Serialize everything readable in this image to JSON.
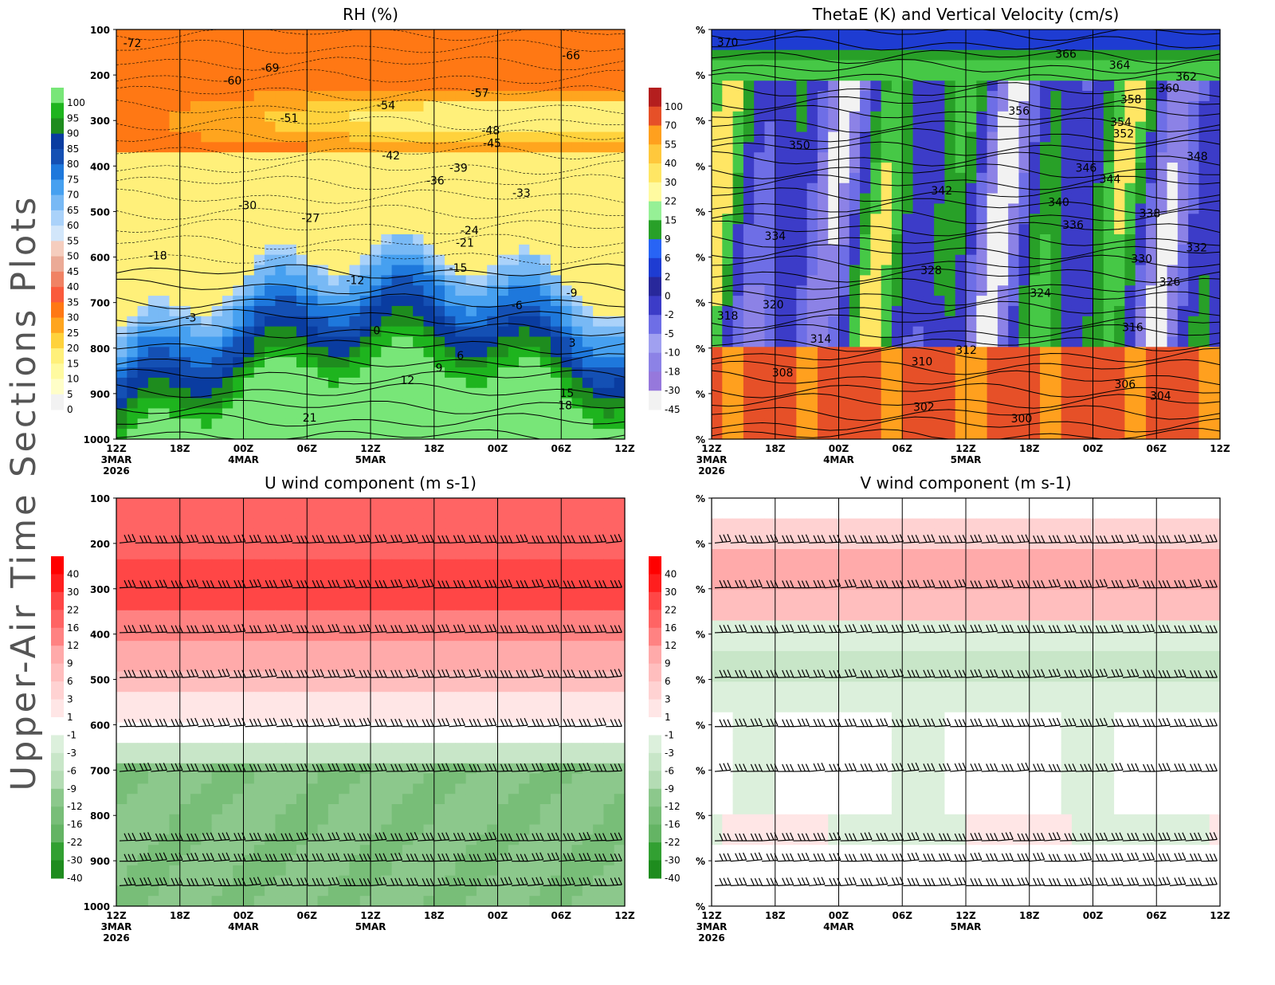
{
  "page_title": "Upper-Air Time Sections Plots",
  "chart_data": [
    {
      "type": "heatmap",
      "title": "RH (%)",
      "xlabel": "",
      "ylabel": "",
      "y_ticks": [
        "100",
        "200",
        "300",
        "400",
        "500",
        "600",
        "700",
        "800",
        "900",
        "1000"
      ],
      "x_ticks": [
        "12Z",
        "18Z",
        "00Z",
        "06Z",
        "12Z",
        "18Z",
        "00Z",
        "06Z",
        "12Z"
      ],
      "x_dates": [
        "3MAR",
        "4MAR",
        "5MAR"
      ],
      "x_year": "2026",
      "colorbar_levels": [
        "100",
        "95",
        "90",
        "85",
        "80",
        "75",
        "70",
        "65",
        "60",
        "55",
        "50",
        "45",
        "40",
        "35",
        "30",
        "25",
        "20",
        "15",
        "10",
        "5",
        "0"
      ],
      "contour_labels": [
        "-72",
        "-66",
        "-69",
        "-60",
        "-57",
        "-54",
        "-51",
        "-48",
        "-45",
        "-42",
        "-39",
        "-36",
        "-33",
        "-30",
        "-27",
        "-24",
        "-21",
        "-18",
        "-15",
        "-12",
        "-9",
        "-6",
        "-3",
        "0",
        "3",
        "6",
        "9",
        "12",
        "15",
        "18",
        "21"
      ]
    },
    {
      "type": "heatmap",
      "title": "ThetaE (K) and Vertical Velocity (cm/s)",
      "y_ticks": [
        "%",
        "%",
        "%",
        "%",
        "%",
        "%",
        "%",
        "%",
        "%",
        "%"
      ],
      "x_ticks": [
        "12Z",
        "18Z",
        "00Z",
        "06Z",
        "12Z",
        "18Z",
        "00Z",
        "06Z",
        "12Z"
      ],
      "x_dates": [
        "3MAR",
        "4MAR",
        "5MAR"
      ],
      "x_year": "2026",
      "colorbar_levels": [
        "100",
        "70",
        "55",
        "40",
        "30",
        "22",
        "15",
        "9",
        "6",
        "2",
        "0",
        "-2",
        "-5",
        "-10",
        "-18",
        "-30",
        "-45"
      ],
      "contour_labels": [
        "370",
        "366",
        "364",
        "362",
        "360",
        "358",
        "356",
        "354",
        "352",
        "350",
        "348",
        "346",
        "344",
        "342",
        "340",
        "338",
        "336",
        "334",
        "332",
        "330",
        "328",
        "326",
        "324",
        "320",
        "318",
        "316",
        "314",
        "312",
        "310",
        "308",
        "306",
        "304",
        "302",
        "300"
      ]
    },
    {
      "type": "heatmap",
      "title": "U wind component (m s-1)",
      "y_ticks": [
        "100",
        "200",
        "300",
        "400",
        "500",
        "600",
        "700",
        "800",
        "900",
        "1000"
      ],
      "x_ticks": [
        "12Z",
        "18Z",
        "00Z",
        "06Z",
        "12Z",
        "18Z",
        "00Z",
        "06Z",
        "12Z"
      ],
      "x_dates": [
        "3MAR",
        "4MAR",
        "5MAR"
      ],
      "x_year": "2026",
      "colorbar_levels": [
        "40",
        "30",
        "22",
        "16",
        "12",
        "9",
        "6",
        "3",
        "1",
        "-1",
        "-3",
        "-6",
        "-9",
        "-12",
        "-16",
        "-22",
        "-30",
        "-40"
      ]
    },
    {
      "type": "heatmap",
      "title": "V wind component (m s-1)",
      "y_ticks": [
        "%",
        "%",
        "%",
        "%",
        "%",
        "%",
        "%",
        "%",
        "%",
        "%"
      ],
      "x_ticks": [
        "12Z",
        "18Z",
        "00Z",
        "06Z",
        "12Z",
        "18Z",
        "00Z",
        "06Z",
        "12Z"
      ],
      "x_dates": [
        "3MAR",
        "4MAR",
        "5MAR"
      ],
      "x_year": "2026",
      "colorbar_levels": [
        "40",
        "30",
        "22",
        "16",
        "12",
        "9",
        "6",
        "3",
        "1",
        "-1",
        "-3",
        "-6",
        "-9",
        "-12",
        "-16",
        "-22",
        "-30",
        "-40"
      ]
    }
  ],
  "colors": {
    "rh": [
      "#f2f2f2",
      "#fffec8",
      "#fffaa0",
      "#fff07a",
      "#ffd23c",
      "#ffa51e",
      "#ff7814",
      "#fa5a3c",
      "#f08264",
      "#ebaa96",
      "#f5cdbe",
      "#fae6e1",
      "#d2e6fa",
      "#aad2fa",
      "#78b9f5",
      "#46a0f0",
      "#1e78dc",
      "#1450b4",
      "#0a3ca0",
      "#1e8c1e",
      "#1eb41e",
      "#78e678"
    ],
    "thetae": [
      "#f2f2f2",
      "#9678dc",
      "#8c82e6",
      "#a0a0f0",
      "#6e6ee6",
      "#3c3cc8",
      "#28289b",
      "#1e3cd2",
      "#2864f5",
      "#46c846",
      "#28a028",
      "#96f096",
      "#fffaa0",
      "#ffe664",
      "#ffc83c",
      "#ffa01e",
      "#e65028",
      "#b41e1e"
    ],
    "wind": [
      "#1e8c1e",
      "#32a032",
      "#64b464",
      "#78be78",
      "#8cc88c",
      "#a0d2a0",
      "#b4dcb4",
      "#c8e6c8",
      "#dcf0dc",
      "#ffffff",
      "#ffe6e6",
      "#ffd2d2",
      "#ffbebe",
      "#ffaaaa",
      "#ff9696",
      "#ff8282",
      "#ff6464",
      "#ff4646",
      "#ff1e1e",
      "#ff0000"
    ]
  }
}
